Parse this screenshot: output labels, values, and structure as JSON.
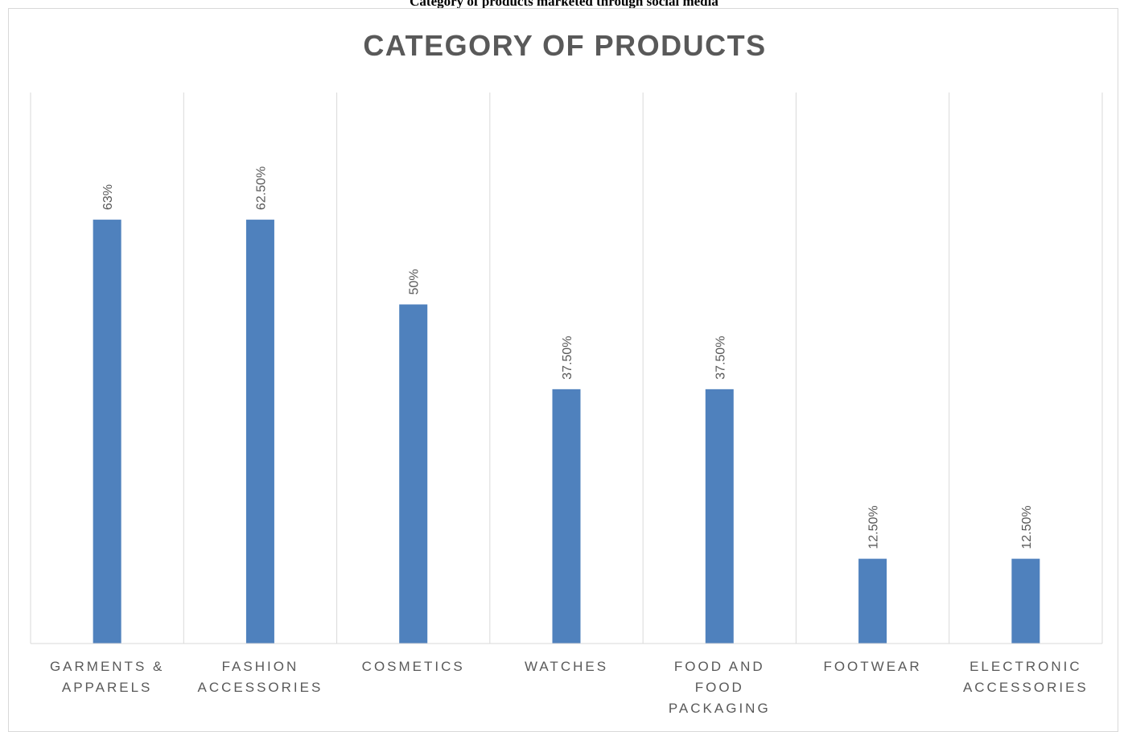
{
  "caption": "Category of products marketed through social media",
  "chart_data": {
    "type": "bar",
    "title": "CATEGORY OF PRODUCTS",
    "xlabel": "",
    "ylabel": "",
    "categories": [
      [
        "GARMENTS &",
        "APPARELS"
      ],
      [
        "FASHION",
        "ACCESSORIES"
      ],
      [
        "COSMETICS"
      ],
      [
        "WATCHES"
      ],
      [
        "FOOD AND",
        "FOOD",
        "PACKAGING"
      ],
      [
        "FOOTWEAR"
      ],
      [
        "ELECTRONIC",
        "ACCESSORIES"
      ]
    ],
    "values": [
      62.5,
      62.5,
      50,
      37.5,
      37.5,
      12.5,
      12.5
    ],
    "data_labels": [
      "63%",
      "62.50%",
      "50%",
      "37.50%",
      "37.50%",
      "12.50%",
      "12.50%"
    ],
    "ylim": [
      0,
      81.25
    ],
    "bar_color": "#4f81bd",
    "gridlines": "vertical category separators",
    "legend": "none"
  }
}
